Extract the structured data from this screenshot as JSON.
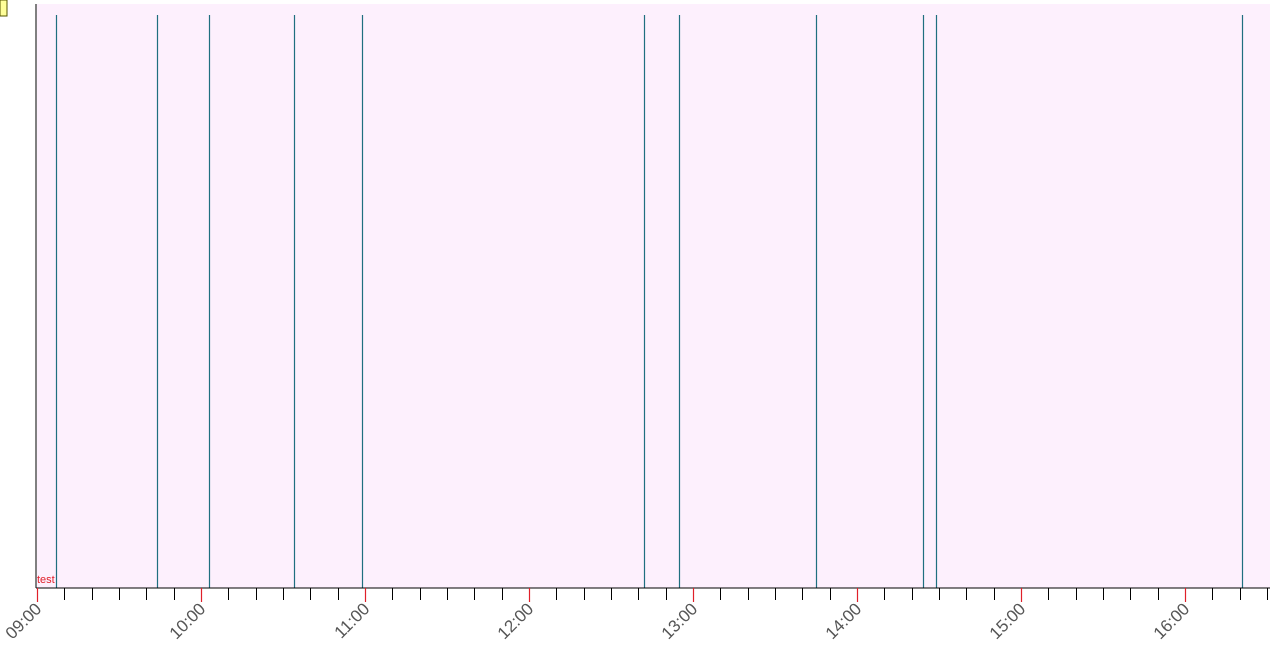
{
  "chart_data": {
    "type": "event-timeline",
    "title": "",
    "xlabel": "",
    "ylabel": "",
    "x_axis": {
      "type": "time",
      "range": [
        "09:00",
        "16:30"
      ],
      "major_ticks": [
        "09:00",
        "10:00",
        "11:00",
        "12:00",
        "13:00",
        "14:00",
        "15:00",
        "16:00"
      ],
      "minor_tick_interval_minutes": 10
    },
    "series": [
      {
        "name": "test",
        "events": [
          "09:07",
          "09:44",
          "10:03",
          "10:34",
          "10:59",
          "12:42",
          "12:55",
          "13:45",
          "14:24",
          "14:29",
          "16:21"
        ]
      }
    ],
    "grid": false,
    "legend": "none",
    "colors": {
      "plot_background": "#fdf0fd",
      "event_line": "#1f6f80",
      "axis": "#000000",
      "major_tick": "#e0202a",
      "tick_label": "#555555",
      "series_label": "#e0202a",
      "corner_marker": "#ffff99"
    }
  }
}
